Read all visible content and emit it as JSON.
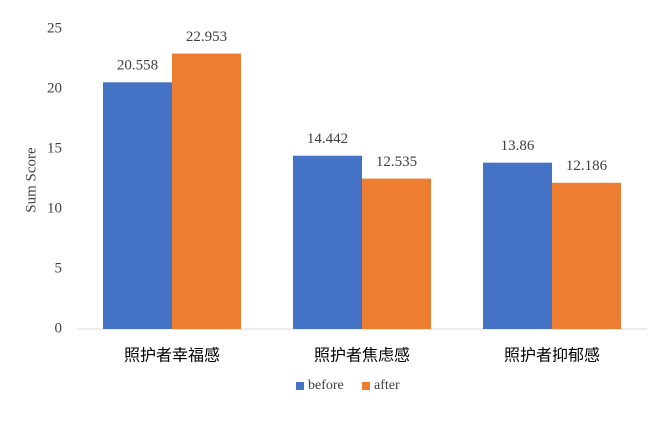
{
  "chart_data": {
    "type": "bar",
    "y_label": "Sum Score",
    "categories": [
      "照护者幸福感",
      "照护者焦虑感",
      "照护者抑郁感"
    ],
    "series": [
      {
        "name": "before",
        "color": "#4472c4",
        "values": [
          20.558,
          14.442,
          13.86
        ]
      },
      {
        "name": "after",
        "color": "#ed7d31",
        "values": [
          22.953,
          12.535,
          12.186
        ]
      }
    ],
    "ylim": [
      0,
      25
    ],
    "yticks": [
      0,
      5,
      10,
      15,
      20,
      25
    ],
    "grid": false,
    "legend": "bottom"
  }
}
